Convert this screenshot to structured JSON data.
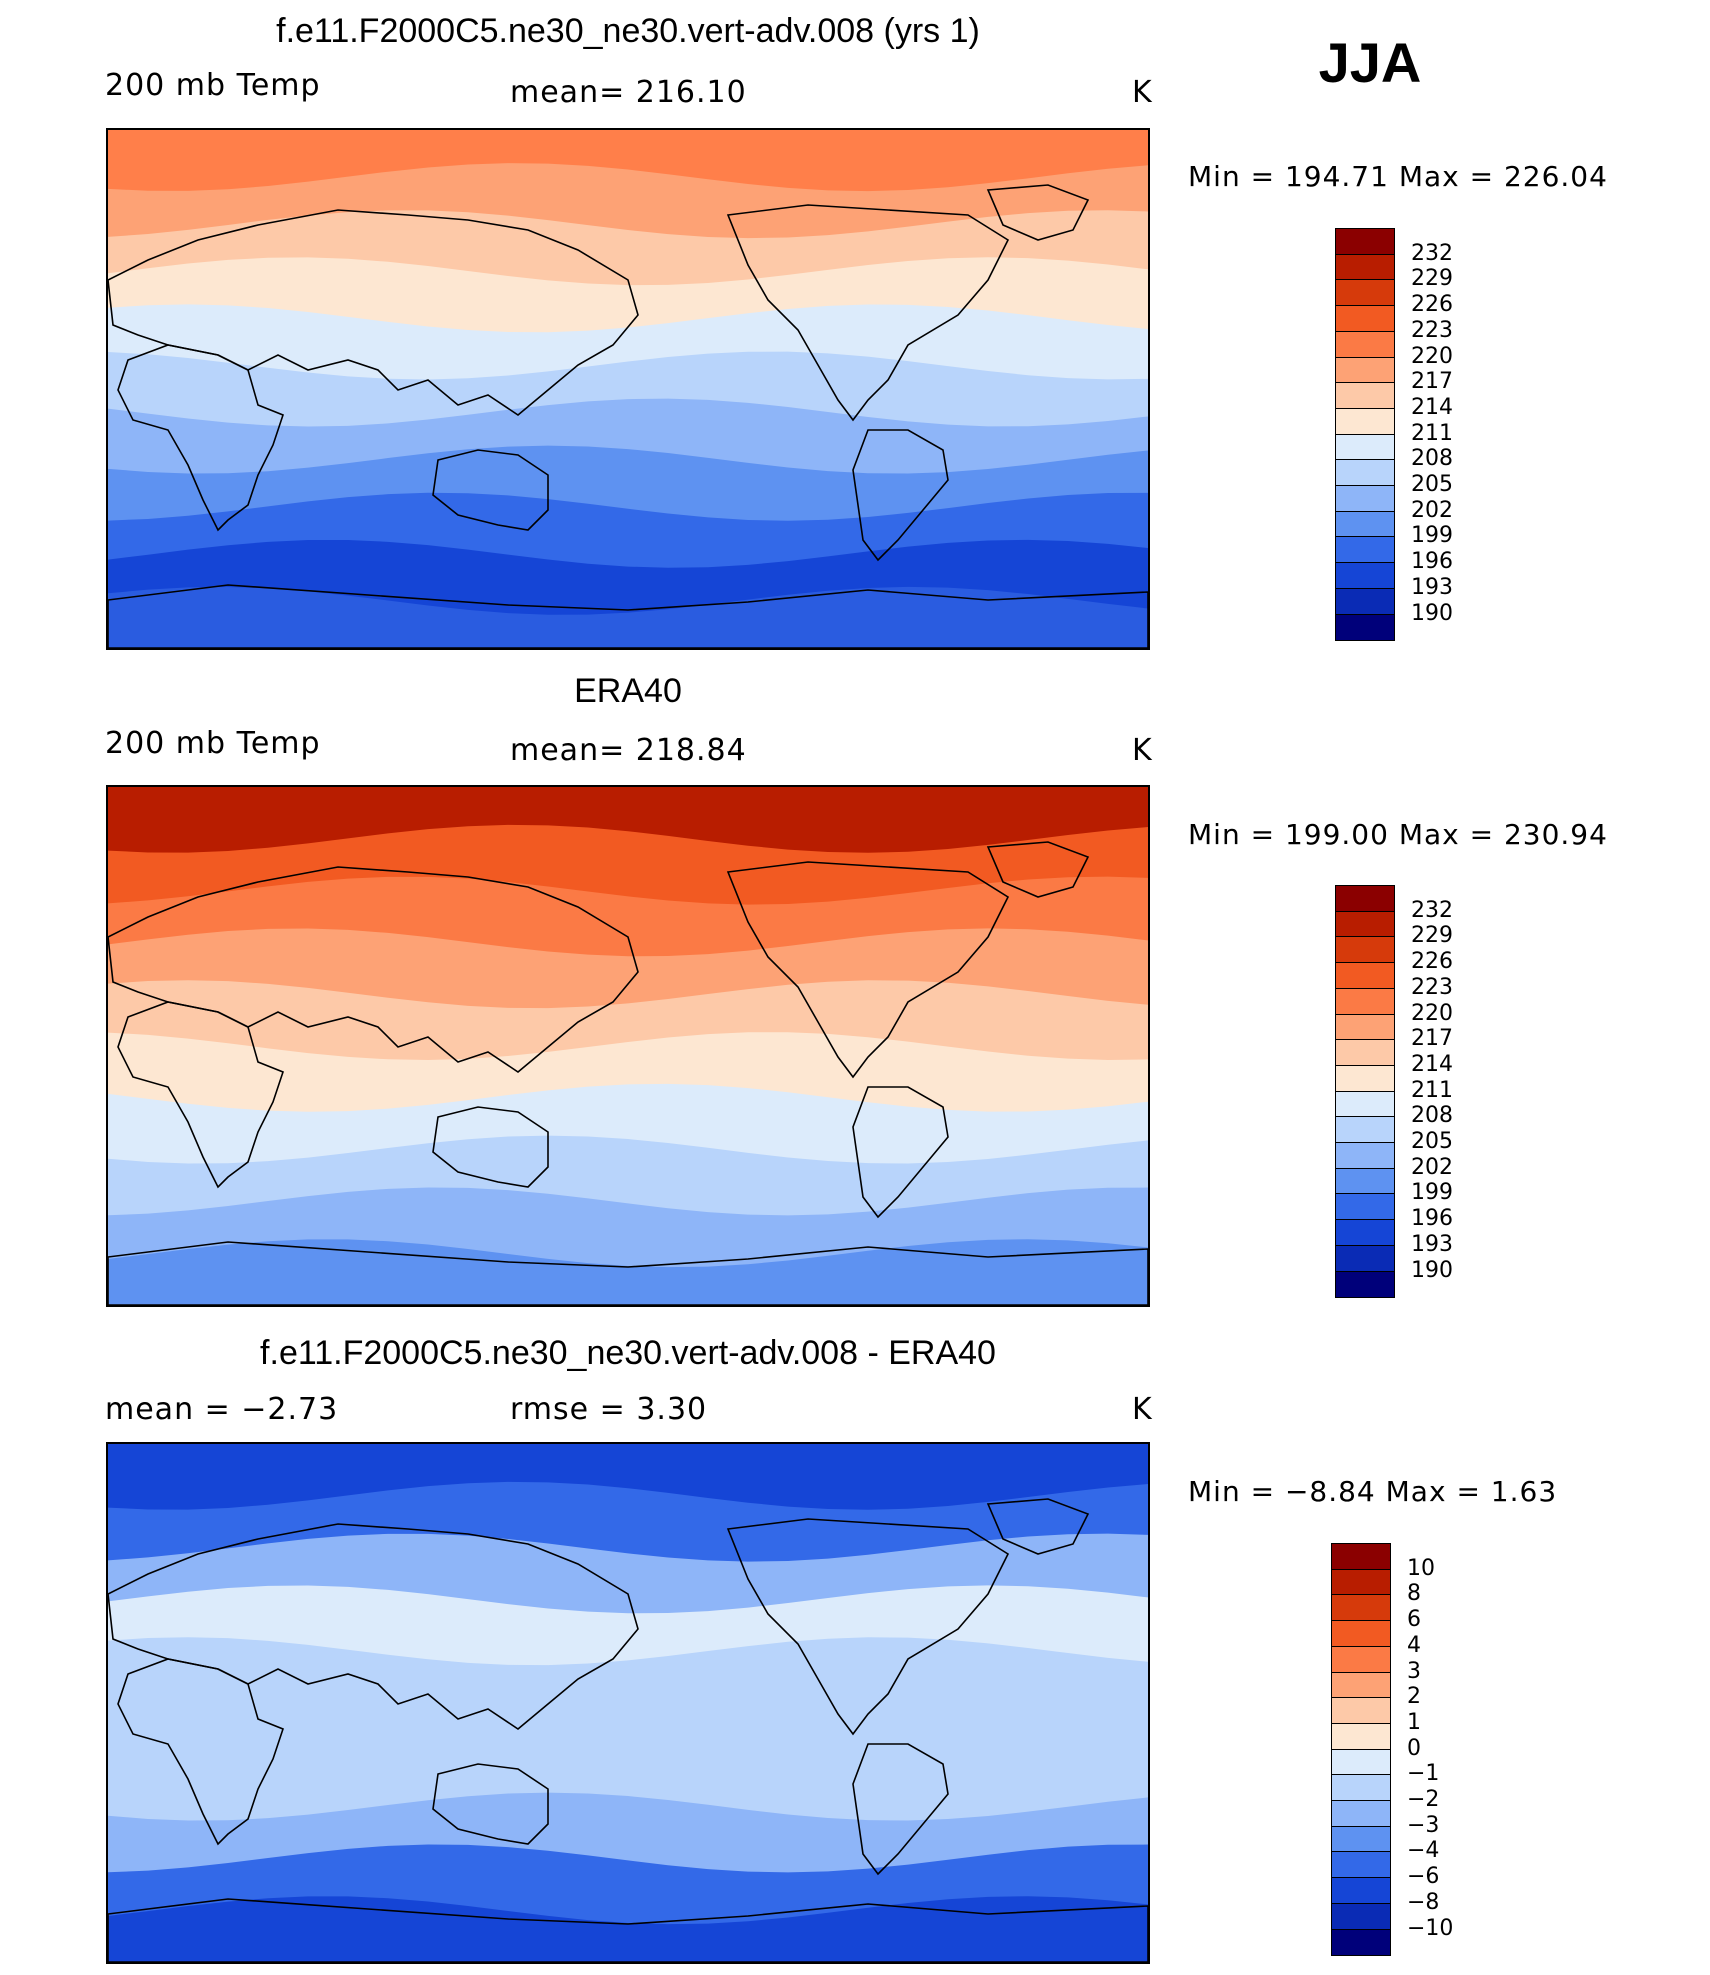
{
  "season": "JJA",
  "panels": [
    {
      "title": "f.e11.F2000C5.ne30_ne30.vert-adv.008 (yrs 1)",
      "left_label": "200 mb Temp",
      "center_label": "mean=  216.10",
      "units": "K",
      "minmax": "Min  =  194.71  Max  =  226.04",
      "colorbar": {
        "levels": [
          "232",
          "229",
          "226",
          "223",
          "220",
          "217",
          "214",
          "211",
          "208",
          "205",
          "202",
          "199",
          "196",
          "193",
          "190"
        ],
        "colors": [
          "#8b0000",
          "#b81d00",
          "#d63a0b",
          "#f25a22",
          "#fb7a45",
          "#fda275",
          "#fdc9a8",
          "#fde7d2",
          "#dcebfb",
          "#b8d4fb",
          "#8eb5f8",
          "#5e92f1",
          "#3369e8",
          "#1545d6",
          "#0a2bb5",
          "#00007a"
        ]
      },
      "bands": [
        "#ff7f4a",
        "#fda275",
        "#fdc9a8",
        "#fde7d2",
        "#dcebfb",
        "#b8d4fb",
        "#8eb5f8",
        "#5e92f1",
        "#3369e8",
        "#1545d6",
        "#2a5ce0"
      ]
    },
    {
      "title": "ERA40",
      "left_label": "200 mb Temp",
      "center_label": "mean=  218.84",
      "units": "K",
      "minmax": "Min  =  199.00  Max  =  230.94",
      "colorbar": {
        "levels": [
          "232",
          "229",
          "226",
          "223",
          "220",
          "217",
          "214",
          "211",
          "208",
          "205",
          "202",
          "199",
          "196",
          "193",
          "190"
        ],
        "colors": [
          "#8b0000",
          "#b81d00",
          "#d63a0b",
          "#f25a22",
          "#fb7a45",
          "#fda275",
          "#fdc9a8",
          "#fde7d2",
          "#dcebfb",
          "#b8d4fb",
          "#8eb5f8",
          "#5e92f1",
          "#3369e8",
          "#1545d6",
          "#0a2bb5",
          "#00007a"
        ]
      },
      "bands": [
        "#b81d00",
        "#f25a22",
        "#fb7a45",
        "#fda275",
        "#fdc9a8",
        "#fde7d2",
        "#dcebfb",
        "#b8d4fb",
        "#8eb5f8",
        "#5e92f1"
      ]
    },
    {
      "title": "f.e11.F2000C5.ne30_ne30.vert-adv.008 - ERA40",
      "left_label": "mean  =    −2.73",
      "center_label": "rmse  =     3.30",
      "units": "K",
      "minmax": "Min  =    −8.84  Max  =     1.63",
      "colorbar": {
        "levels": [
          "10",
          "8",
          "6",
          "4",
          "3",
          "2",
          "1",
          "0",
          "−1",
          "−2",
          "−3",
          "−4",
          "−6",
          "−8",
          "−10"
        ],
        "colors": [
          "#8b0000",
          "#b81d00",
          "#d63a0b",
          "#f25a22",
          "#fb7a45",
          "#fda275",
          "#fdc9a8",
          "#fde7d2",
          "#dcebfb",
          "#b8d4fb",
          "#8eb5f8",
          "#5e92f1",
          "#3369e8",
          "#1545d6",
          "#0a2bb5",
          "#00007a"
        ]
      },
      "bands": [
        "#1545d6",
        "#3369e8",
        "#8eb5f8",
        "#dcebfb",
        "#b8d4fb",
        "#b8d4fb",
        "#b8d4fb",
        "#8eb5f8",
        "#3369e8",
        "#1545d6"
      ]
    }
  ],
  "chart_data": [
    {
      "type": "heatmap",
      "title": "f.e11.F2000C5.ne30_ne30.vert-adv.008 (yrs 1)",
      "variable": "200 mb Temp",
      "units": "K",
      "mean": 216.1,
      "min": 194.71,
      "max": 226.04,
      "contour_levels": [
        190,
        193,
        196,
        199,
        202,
        205,
        208,
        211,
        214,
        217,
        220,
        223,
        226,
        229,
        232
      ]
    },
    {
      "type": "heatmap",
      "title": "ERA40",
      "variable": "200 mb Temp",
      "units": "K",
      "mean": 218.84,
      "min": 199.0,
      "max": 230.94,
      "contour_levels": [
        190,
        193,
        196,
        199,
        202,
        205,
        208,
        211,
        214,
        217,
        220,
        223,
        226,
        229,
        232
      ]
    },
    {
      "type": "heatmap",
      "title": "f.e11.F2000C5.ne30_ne30.vert-adv.008 - ERA40",
      "units": "K",
      "mean": -2.73,
      "rmse": 3.3,
      "min": -8.84,
      "max": 1.63,
      "contour_levels": [
        -10,
        -8,
        -6,
        -4,
        -3,
        -2,
        -1,
        0,
        1,
        2,
        3,
        4,
        6,
        8,
        10
      ]
    }
  ]
}
